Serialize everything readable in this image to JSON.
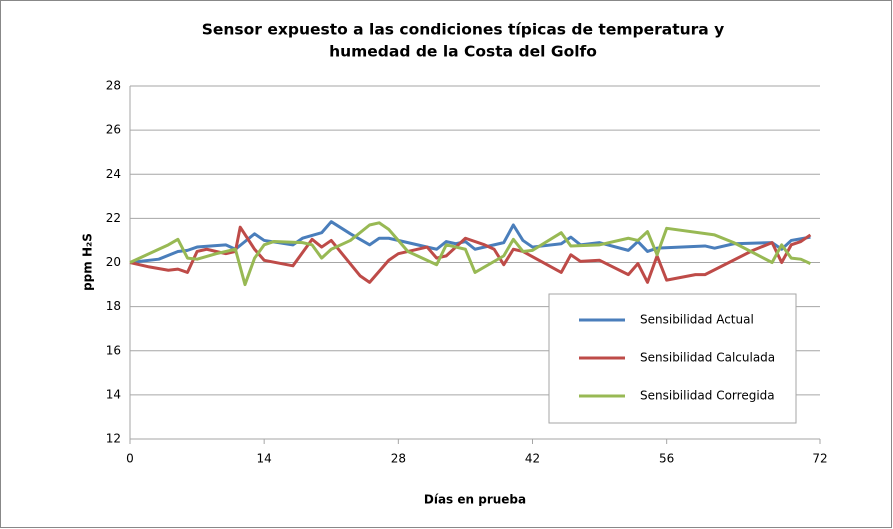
{
  "chart_data": {
    "type": "line",
    "title": [
      "Sensor expuesto a las condiciones típicas de temperatura y",
      "humedad de la Costa del Golfo"
    ],
    "x_label": "Días en prueba",
    "y_label": "ppm H₂S",
    "xlim": [
      0,
      72
    ],
    "xticks": [
      0,
      14,
      28,
      42,
      56,
      72
    ],
    "ylim": [
      12,
      28
    ],
    "yticks": [
      12,
      14,
      16,
      18,
      20,
      22,
      24,
      26,
      28
    ],
    "grid": true,
    "legend": "lower right",
    "series": [
      {
        "name": "Sensibilidad Actual",
        "color": "#4a7ebb",
        "x": [
          0,
          3,
          5,
          6,
          7,
          10,
          11,
          13,
          14,
          17,
          18,
          20,
          21,
          23,
          25,
          26,
          27,
          29,
          32,
          33,
          34,
          35,
          36,
          39,
          40,
          41,
          42,
          45,
          46,
          47,
          49,
          52,
          53,
          54,
          55,
          60,
          61,
          63,
          67,
          68,
          69,
          71
        ],
        "values": [
          20,
          20.15,
          20.5,
          20.55,
          20.7,
          20.8,
          20.6,
          21.3,
          21.0,
          20.8,
          21.1,
          21.35,
          21.85,
          21.3,
          20.8,
          21.1,
          21.1,
          20.9,
          20.6,
          20.95,
          20.85,
          20.95,
          20.6,
          20.9,
          21.7,
          21.0,
          20.7,
          20.85,
          21.15,
          20.8,
          20.9,
          20.55,
          20.95,
          20.5,
          20.65,
          20.75,
          20.65,
          20.85,
          20.9,
          20.6,
          21.0,
          21.15
        ]
      },
      {
        "name": "Sensibilidad Calculada",
        "color": "#be4b48",
        "x": [
          0,
          2,
          4,
          5,
          6,
          7,
          8,
          10,
          11,
          11.5,
          13,
          14,
          17,
          19,
          20,
          21,
          24,
          25,
          27,
          28,
          31,
          32,
          33,
          35,
          37,
          38,
          39,
          40,
          41,
          45,
          46,
          47,
          49,
          52,
          53,
          54,
          55,
          56,
          59,
          60,
          65,
          67,
          68,
          69,
          70,
          71
        ],
        "values": [
          20,
          19.8,
          19.65,
          19.7,
          19.55,
          20.5,
          20.6,
          20.4,
          20.5,
          21.6,
          20.6,
          20.1,
          19.85,
          21.05,
          20.7,
          21.0,
          19.4,
          19.1,
          20.1,
          20.4,
          20.7,
          20.2,
          20.3,
          21.1,
          20.8,
          20.6,
          19.9,
          20.6,
          20.5,
          19.55,
          20.35,
          20.05,
          20.1,
          19.45,
          19.95,
          19.1,
          20.3,
          19.2,
          19.45,
          19.45,
          20.55,
          20.9,
          20.0,
          20.8,
          20.95,
          21.25
        ]
      },
      {
        "name": "Sensibilidad Corregida",
        "color": "#98b954",
        "x": [
          0,
          3,
          4,
          5,
          6,
          7,
          9,
          11,
          12,
          13,
          14,
          15,
          18,
          19,
          20,
          21,
          23,
          25,
          26,
          27,
          29,
          32,
          33,
          35,
          36,
          39,
          40,
          41,
          42,
          45,
          46,
          49,
          52,
          53,
          54,
          55,
          56,
          61,
          63,
          67,
          68,
          69,
          70,
          71
        ],
        "values": [
          20,
          20.6,
          20.8,
          21.05,
          20.2,
          20.15,
          20.4,
          20.6,
          19.0,
          20.2,
          20.8,
          20.95,
          20.9,
          20.8,
          20.2,
          20.6,
          21.0,
          21.7,
          21.8,
          21.5,
          20.5,
          19.9,
          20.8,
          20.6,
          19.55,
          20.3,
          21.05,
          20.5,
          20.55,
          21.35,
          20.75,
          20.8,
          21.1,
          21.0,
          21.4,
          20.35,
          21.55,
          21.25,
          20.9,
          20.0,
          20.8,
          20.2,
          20.15,
          19.95
        ]
      }
    ]
  }
}
